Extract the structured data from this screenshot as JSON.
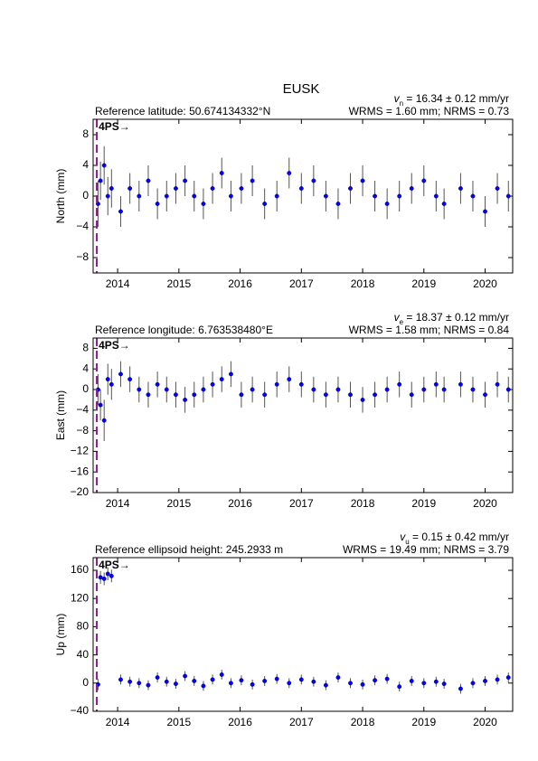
{
  "title": "EUSK",
  "chart_data": [
    {
      "type": "scatter",
      "reference": "Reference latitude: 50.674134332°N",
      "rate": {
        "symbol": "v",
        "subscript": "n",
        "text": " = 16.34 ± 0.12 mm/yr"
      },
      "stats": "WRMS = 1.60 mm; NRMS = 0.73",
      "y_label": "North (mm)",
      "event": {
        "x": 2013.66,
        "label": "4PS→",
        "color": "#8b1a8b"
      },
      "xlim": [
        2013.6,
        2020.45
      ],
      "xticks": [
        2014,
        2015,
        2016,
        2017,
        2018,
        2019,
        2020
      ],
      "ylim": [
        -10,
        10
      ],
      "yticks": [
        {
          "value": -8,
          "label": "−8"
        },
        {
          "value": -4,
          "label": "−4"
        },
        0,
        4,
        8
      ],
      "point_color": "#0000ff",
      "error_color": "#555555",
      "x": [
        2013.68,
        2013.72,
        2013.78,
        2013.84,
        2013.9,
        2014.05,
        2014.2,
        2014.35,
        2014.5,
        2014.65,
        2014.8,
        2014.95,
        2015.1,
        2015.25,
        2015.4,
        2015.55,
        2015.7,
        2015.85,
        2016.02,
        2016.2,
        2016.4,
        2016.6,
        2016.8,
        2017.0,
        2017.2,
        2017.4,
        2017.6,
        2017.8,
        2018.0,
        2018.2,
        2018.4,
        2018.6,
        2018.8,
        2019.0,
        2019.2,
        2019.33,
        2019.6,
        2019.8,
        2020.0,
        2020.2,
        2020.38
      ],
      "values": [
        -1,
        2,
        4,
        0,
        1,
        -2,
        1,
        0,
        2,
        -1,
        0,
        1,
        2,
        0,
        -1,
        1,
        3,
        0,
        1,
        2,
        -1,
        0,
        3,
        1,
        2,
        0,
        -1,
        1,
        2,
        0,
        -1,
        0,
        1,
        2,
        0,
        -1,
        1,
        0,
        -2,
        1,
        0
      ],
      "errors": [
        3,
        2.5,
        2.5,
        2.5,
        2.5,
        2,
        2,
        2,
        2,
        2,
        2,
        2,
        2,
        2,
        2,
        2,
        2,
        2,
        2,
        2,
        2,
        2,
        2,
        2,
        2,
        2,
        2,
        2,
        2,
        2,
        2,
        2,
        2,
        2,
        2,
        2,
        2,
        2,
        2,
        2,
        2
      ]
    },
    {
      "type": "scatter",
      "reference": "Reference longitude: 6.763538480°E",
      "rate": {
        "symbol": "v",
        "subscript": "e",
        "text": " = 18.37 ± 0.12 mm/yr"
      },
      "stats": "WRMS = 1.58 mm; NRMS = 0.84",
      "y_label": "East (mm)",
      "event": {
        "x": 2013.66,
        "label": "4PS→",
        "color": "#8b1a8b"
      },
      "xlim": [
        2013.6,
        2020.45
      ],
      "xticks": [
        2014,
        2015,
        2016,
        2017,
        2018,
        2019,
        2020
      ],
      "ylim": [
        -20,
        10
      ],
      "yticks": [
        {
          "value": -20,
          "label": "−20"
        },
        {
          "value": -16,
          "label": "−16"
        },
        {
          "value": -12,
          "label": "−12"
        },
        {
          "value": -8,
          "label": "−8"
        },
        {
          "value": -4,
          "label": "−4"
        },
        0,
        4,
        8
      ],
      "point_color": "#0000ff",
      "error_color": "#555555",
      "x": [
        2013.68,
        2013.72,
        2013.78,
        2013.84,
        2013.9,
        2014.05,
        2014.2,
        2014.35,
        2014.5,
        2014.65,
        2014.8,
        2014.95,
        2015.1,
        2015.25,
        2015.4,
        2015.55,
        2015.7,
        2015.85,
        2016.02,
        2016.2,
        2016.4,
        2016.6,
        2016.8,
        2017.0,
        2017.2,
        2017.4,
        2017.6,
        2017.8,
        2018.0,
        2018.2,
        2018.4,
        2018.6,
        2018.8,
        2019.0,
        2019.2,
        2019.33,
        2019.6,
        2019.8,
        2020.0,
        2020.2,
        2020.38
      ],
      "values": [
        0,
        -3,
        -6,
        2,
        1,
        3,
        2,
        0,
        -1,
        1,
        0,
        -1,
        -2,
        -1,
        0,
        1,
        2,
        3,
        -1,
        0,
        -1,
        1,
        2,
        1,
        0,
        -1,
        0,
        -1,
        -2,
        -1,
        0,
        1,
        -1,
        0,
        1,
        0,
        1,
        0,
        -1,
        1,
        0
      ],
      "errors": [
        3,
        3,
        4,
        3,
        3,
        2.5,
        2.5,
        2.5,
        2.5,
        2.5,
        2.5,
        2.5,
        2.5,
        2.5,
        2.5,
        2.5,
        2.5,
        2.5,
        2.5,
        2.5,
        2.5,
        2.5,
        2.5,
        2.5,
        2.5,
        2.5,
        2.5,
        2.5,
        2.5,
        2.5,
        2.5,
        2.5,
        2.5,
        2.5,
        2.5,
        2.5,
        2.5,
        2.5,
        2.5,
        2.5,
        2.5
      ]
    },
    {
      "type": "scatter",
      "reference": "Reference ellipsoid height: 245.2933 m",
      "rate": {
        "symbol": "v",
        "subscript": "u",
        "text": " = 0.15 ± 0.42 mm/yr"
      },
      "stats": "WRMS = 19.49 mm; NRMS = 3.79",
      "y_label": "Up (mm)",
      "event": {
        "x": 2013.66,
        "label": "4PS→",
        "color": "#8b1a8b"
      },
      "xlim": [
        2013.6,
        2020.45
      ],
      "xticks": [
        2014,
        2015,
        2016,
        2017,
        2018,
        2019,
        2020
      ],
      "ylim": [
        -40,
        178
      ],
      "yticks": [
        {
          "value": -40,
          "label": "−40"
        },
        0,
        40,
        80,
        120,
        160
      ],
      "point_color": "#0000ff",
      "error_color": "#555555",
      "x": [
        2013.68,
        2013.72,
        2013.78,
        2013.84,
        2013.9,
        2014.05,
        2014.2,
        2014.35,
        2014.5,
        2014.65,
        2014.8,
        2014.95,
        2015.1,
        2015.25,
        2015.4,
        2015.55,
        2015.7,
        2015.85,
        2016.02,
        2016.2,
        2016.4,
        2016.6,
        2016.8,
        2017.0,
        2017.2,
        2017.4,
        2017.6,
        2017.8,
        2018.0,
        2018.2,
        2018.4,
        2018.6,
        2018.8,
        2019.0,
        2019.2,
        2019.33,
        2019.6,
        2019.8,
        2020.0,
        2020.2,
        2020.38
      ],
      "values": [
        -2,
        150,
        148,
        155,
        152,
        5,
        2,
        0,
        -3,
        8,
        2,
        -1,
        10,
        3,
        -4,
        5,
        12,
        0,
        4,
        -2,
        3,
        6,
        0,
        5,
        2,
        -3,
        8,
        0,
        -2,
        4,
        6,
        -5,
        3,
        0,
        2,
        -1,
        -8,
        0,
        3,
        5,
        8
      ],
      "errors": [
        8,
        9,
        9,
        9,
        9,
        7,
        7,
        7,
        7,
        7,
        7,
        7,
        7,
        7,
        7,
        7,
        7,
        7,
        7,
        7,
        7,
        7,
        7,
        7,
        7,
        7,
        7,
        7,
        7,
        7,
        7,
        7,
        7,
        7,
        7,
        7,
        7,
        7,
        7,
        7,
        7
      ]
    }
  ]
}
